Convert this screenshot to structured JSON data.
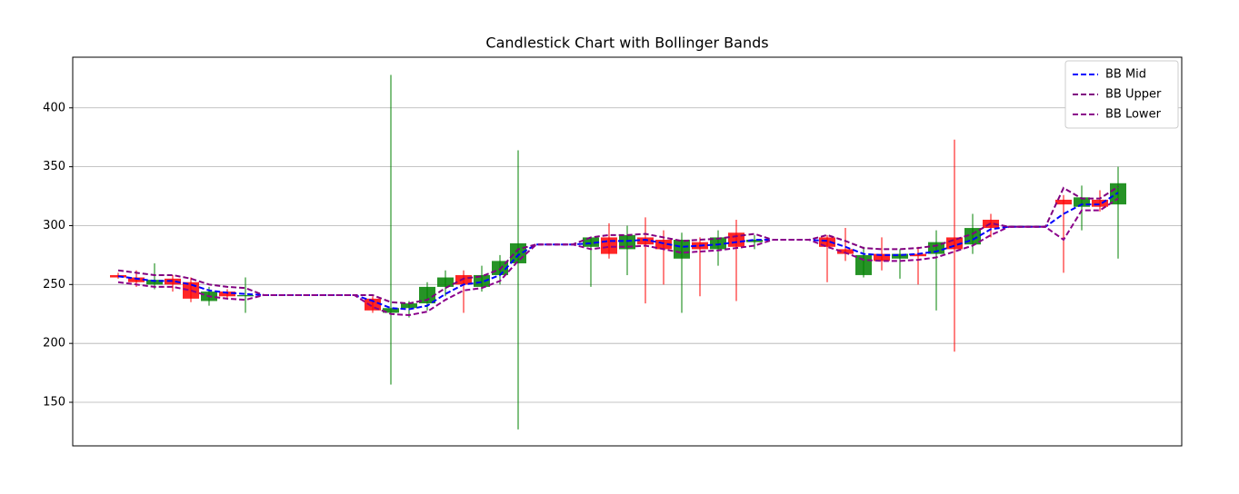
{
  "chart_data": {
    "type": "candlestick",
    "title": "Candlestick Chart with Bollinger Bands",
    "up_color": "green",
    "down_color": "red",
    "open": [
      null,
      null,
      258,
      256,
      250,
      255,
      252,
      236,
      244,
      240,
      null,
      null,
      null,
      null,
      null,
      null,
      238,
      226,
      230,
      234,
      248,
      258,
      248,
      258,
      268,
      null,
      null,
      null,
      282,
      290,
      280,
      290,
      288,
      272,
      286,
      280,
      294,
      286,
      null,
      null,
      null,
      290,
      280,
      258,
      276,
      272,
      276,
      276,
      290,
      284,
      305,
      null,
      null,
      null,
      322,
      316,
      322,
      318,
      null,
      null,
      null
    ],
    "high": [
      null,
      null,
      260,
      262,
      268,
      258,
      256,
      248,
      246,
      256,
      null,
      null,
      null,
      null,
      null,
      null,
      240,
      428,
      236,
      252,
      262,
      262,
      266,
      275,
      364,
      null,
      null,
      null,
      290,
      302,
      300,
      307,
      296,
      294,
      290,
      296,
      305,
      292,
      null,
      null,
      null,
      292,
      298,
      282,
      290,
      280,
      282,
      296,
      373,
      310,
      310,
      null,
      null,
      null,
      326,
      334,
      330,
      350,
      null,
      null,
      null
    ],
    "low": [
      null,
      null,
      255,
      248,
      246,
      244,
      235,
      232,
      238,
      226,
      null,
      null,
      null,
      null,
      null,
      null,
      226,
      165,
      222,
      228,
      240,
      226,
      244,
      250,
      127,
      null,
      null,
      null,
      248,
      272,
      258,
      234,
      250,
      226,
      240,
      266,
      236,
      280,
      null,
      null,
      null,
      252,
      270,
      256,
      262,
      255,
      250,
      228,
      193,
      276,
      290,
      null,
      null,
      null,
      260,
      296,
      312,
      272,
      null,
      null,
      null
    ],
    "close": [
      null,
      null,
      256,
      252,
      254,
      250,
      238,
      244,
      240,
      241,
      null,
      null,
      null,
      null,
      null,
      null,
      228,
      230,
      234,
      248,
      256,
      250,
      258,
      270,
      285,
      null,
      null,
      null,
      290,
      276,
      292,
      284,
      280,
      288,
      280,
      290,
      282,
      288,
      null,
      null,
      null,
      282,
      276,
      275,
      270,
      276,
      274,
      286,
      280,
      298,
      298,
      null,
      null,
      null,
      318,
      324,
      316,
      336,
      null,
      null,
      null
    ],
    "series": [
      {
        "name": "BB Mid",
        "color": "blue",
        "values": [
          null,
          null,
          257,
          255,
          253,
          253,
          250,
          245,
          243,
          242,
          241,
          241,
          241,
          241,
          241,
          241,
          236,
          230,
          229,
          232,
          242,
          250,
          252,
          258,
          275,
          284,
          284,
          284,
          285,
          287,
          287,
          288,
          285,
          282,
          283,
          284,
          286,
          288,
          288,
          288,
          288,
          287,
          282,
          276,
          275,
          275,
          276,
          278,
          283,
          288,
          297,
          299,
          299,
          299,
          310,
          318,
          318,
          328,
          null,
          null,
          null
        ]
      },
      {
        "name": "BB Upper",
        "color": "purple",
        "values": [
          null,
          null,
          262,
          260,
          258,
          258,
          255,
          250,
          248,
          247,
          241,
          241,
          241,
          241,
          241,
          241,
          241,
          235,
          234,
          237,
          247,
          255,
          257,
          263,
          280,
          284,
          284,
          284,
          290,
          292,
          292,
          293,
          290,
          287,
          288,
          289,
          291,
          293,
          288,
          288,
          288,
          292,
          287,
          281,
          280,
          280,
          281,
          283,
          288,
          293,
          302,
          299,
          299,
          299,
          332,
          323,
          323,
          333,
          null,
          null,
          null
        ]
      },
      {
        "name": "BB Lower",
        "color": "darkmagenta",
        "values": [
          null,
          null,
          252,
          250,
          248,
          248,
          245,
          240,
          238,
          237,
          241,
          241,
          241,
          241,
          241,
          241,
          231,
          225,
          224,
          227,
          237,
          245,
          247,
          253,
          270,
          284,
          284,
          284,
          280,
          282,
          282,
          283,
          280,
          277,
          278,
          279,
          281,
          283,
          288,
          288,
          288,
          282,
          277,
          271,
          270,
          270,
          271,
          273,
          278,
          283,
          292,
          299,
          299,
          299,
          288,
          313,
          313,
          323,
          null,
          null,
          null
        ]
      }
    ],
    "ylim": [
      113,
      443
    ],
    "yticks": [
      150,
      200,
      250,
      300,
      350,
      400
    ],
    "grid": true,
    "legend": "upper right"
  }
}
